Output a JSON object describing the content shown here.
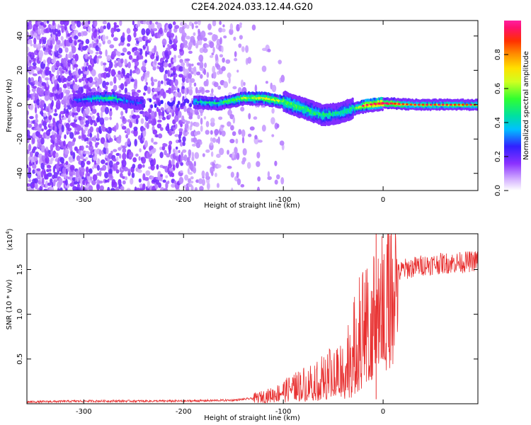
{
  "title": "C2E4.2024.033.12.44.G20",
  "chart_data": [
    {
      "type": "heatmap",
      "xlabel": "Height of straight line (km)",
      "ylabel": "Frequency (Hz)",
      "xlim": [
        -357,
        95
      ],
      "ylim": [
        -50,
        49
      ],
      "xticks": [
        -300,
        -200,
        -100,
        0
      ],
      "xtick_labels": [
        "-300",
        "-200",
        "-100",
        "0"
      ],
      "yticks": [
        -40,
        -20,
        0,
        20,
        40
      ],
      "ytick_labels": [
        "-40",
        "-20",
        "0",
        "20",
        "40"
      ],
      "colorbar": {
        "label": "Normalized spectral amplitude",
        "range": [
          0,
          1
        ],
        "ticks": [
          0,
          0.2,
          0.4,
          0.6,
          0.8
        ],
        "tick_labels": [
          "0.0",
          "0.2",
          "0.4",
          "0.6",
          "0.8"
        ]
      },
      "ridge": {
        "x": [
          -305,
          -285,
          -270,
          -255,
          -240,
          -215,
          -190,
          -165,
          -140,
          -120,
          -100,
          -80,
          -60,
          -45,
          -30,
          -15,
          0,
          30,
          60,
          90
        ],
        "y": [
          3,
          4,
          4,
          2,
          1,
          0,
          2,
          1,
          4,
          4,
          2,
          -2,
          -6,
          -5,
          -2,
          0,
          1,
          0,
          0,
          0
        ],
        "amplitude": [
          0.3,
          0.45,
          0.5,
          0.3,
          0.25,
          0.2,
          0.4,
          0.45,
          0.6,
          0.7,
          0.6,
          0.55,
          0.5,
          0.45,
          0.5,
          0.8,
          0.95,
          0.6,
          0.6,
          0.6
        ]
      },
      "grid": false
    },
    {
      "type": "line",
      "xlabel": "Height of straight line (km)",
      "ylabel": "SNR (10 * v/v)",
      "yscale_label": "(x10",
      "yscale_exponent": "4",
      "yscale_suffix": ")",
      "xlim": [
        -357,
        95
      ],
      "ylim": [
        0,
        1.9
      ],
      "xticks": [
        -300,
        -200,
        -100,
        0
      ],
      "xtick_labels": [
        "-300",
        "-200",
        "-100",
        "0"
      ],
      "yticks": [
        0.5,
        1.0,
        1.5
      ],
      "ytick_labels": [
        "0.5",
        "1.0",
        "1.5"
      ],
      "series": [
        {
          "color": "#e83030",
          "x": [
            -357,
            -300,
            -250,
            -200,
            -150,
            -130,
            -110,
            -100,
            -90,
            -80,
            -70,
            -60,
            -50,
            -40,
            -30,
            -20,
            -15,
            -10,
            -5,
            0,
            10,
            20,
            40,
            60,
            80,
            95
          ],
          "y": [
            0.02,
            0.03,
            0.03,
            0.03,
            0.04,
            0.06,
            0.1,
            0.14,
            0.18,
            0.22,
            0.26,
            0.3,
            0.34,
            0.4,
            0.6,
            0.85,
            1.0,
            1.05,
            1.1,
            1.2,
            1.4,
            1.5,
            1.55,
            1.57,
            1.58,
            1.6
          ],
          "spikes": [
            {
              "x": -7,
              "y": 1.9
            }
          ]
        }
      ],
      "grid": false
    }
  ]
}
